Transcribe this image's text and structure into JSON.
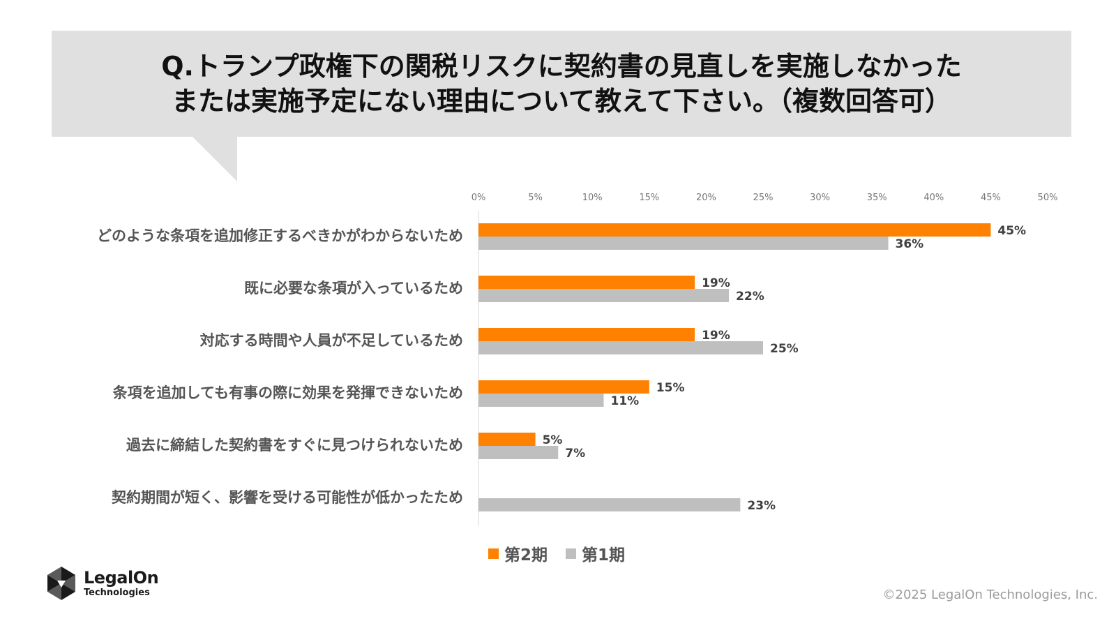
{
  "question": {
    "line1": "Q.トランプ政権下の関税リスクに契約書の見直しを実施しなかった",
    "line2": "または実施予定にない理由について教えて下さい。（複数回答可）"
  },
  "chart_data": {
    "type": "bar",
    "orientation": "horizontal",
    "title": "",
    "xlabel": "",
    "ylabel": "",
    "xlim": [
      0,
      50
    ],
    "x_ticks": [
      "0%",
      "5%",
      "10%",
      "15%",
      "20%",
      "25%",
      "30%",
      "35%",
      "40%",
      "45%",
      "50%"
    ],
    "x_axis_position": "top",
    "grid": false,
    "legend_position": "bottom",
    "categories": [
      "どのような条項を追加修正するべきかがわからないため",
      "既に必要な条項が入っているため",
      "対応する時間や人員が不足しているため",
      "条項を追加しても有事の際に効果を発揮できないため",
      "過去に締結した契約書をすぐに見つけられないため",
      "契約期間が短く、影響を受ける可能性が低かったため"
    ],
    "series": [
      {
        "name": "第2期",
        "color": "#fe8102",
        "values": [
          45,
          19,
          19,
          15,
          5,
          null
        ],
        "labels": [
          "45%",
          "19%",
          "19%",
          "15%",
          "5%",
          ""
        ]
      },
      {
        "name": "第1期",
        "color": "#bfbfbf",
        "values": [
          36,
          22,
          25,
          11,
          7,
          23
        ],
        "labels": [
          "36%",
          "22%",
          "25%",
          "11%",
          "7%",
          "23%"
        ]
      }
    ]
  },
  "legend": {
    "items": [
      {
        "label": "第2期",
        "color": "#fe8102"
      },
      {
        "label": "第1期",
        "color": "#bfbfbf"
      }
    ]
  },
  "logo": {
    "name": "LegalOn",
    "sub": "Technologies",
    "icon": "legalon-logo-icon"
  },
  "footer": {
    "copyright": "©2025 LegalOn Technologies, Inc."
  },
  "colors": {
    "question_bg": "#e0e0e0",
    "series_2": "#fe8102",
    "series_1": "#bfbfbf"
  }
}
